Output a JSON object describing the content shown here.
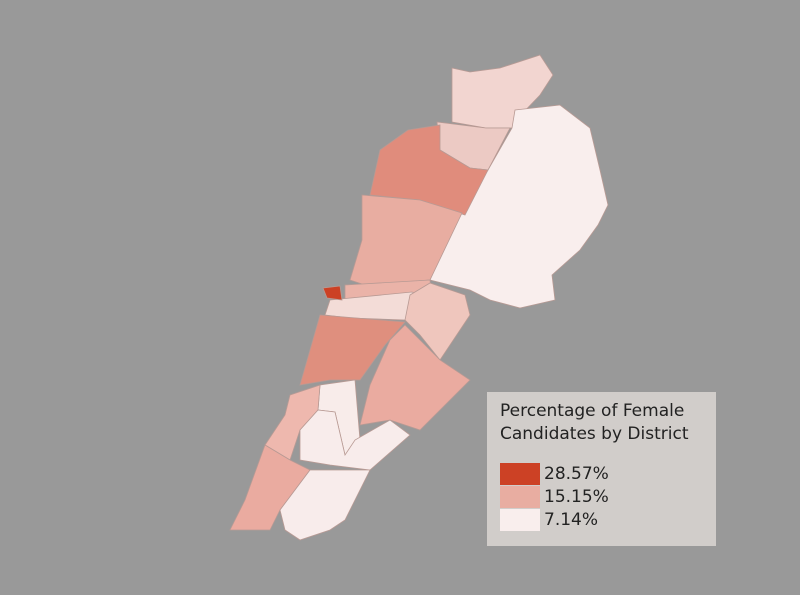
{
  "legend": {
    "title": "Percentage of Female Candidates by District",
    "items": [
      {
        "label": "28.57%",
        "color": "#cc4125"
      },
      {
        "label": "15.15%",
        "color": "#e8ada1"
      },
      {
        "label": "7.14%",
        "color": "#f9eeed"
      }
    ]
  }
}
